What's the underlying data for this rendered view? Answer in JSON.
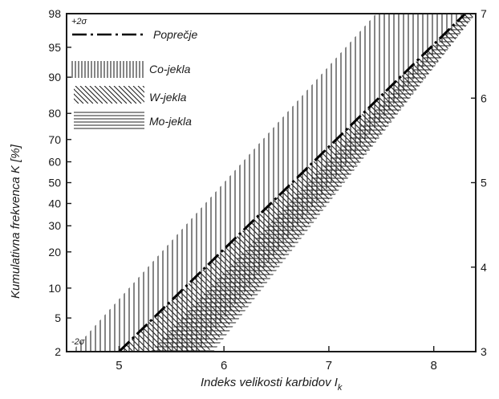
{
  "chart_data": {
    "type": "line",
    "xlabel": "Indeks velikosti karbidov I",
    "xlabel_sub": "k",
    "ylabel": "Kumulativna frekvenca K [%]",
    "xlim": [
      4.5,
      8.4
    ],
    "x_ticks": [
      5,
      6,
      7,
      8
    ],
    "y_left_ticks": [
      2,
      5,
      10,
      20,
      30,
      40,
      50,
      60,
      70,
      80,
      90,
      95,
      98
    ],
    "y_right_ticks": [
      3,
      4,
      5,
      6,
      7
    ],
    "annotations": {
      "upper": "+2σ",
      "lower": "-2σ"
    },
    "legend_position": "top-left",
    "series": [
      {
        "name": "Poprečje",
        "style": "dash-dot",
        "x": [
          5.0,
          8.3
        ],
        "y_right": [
          3.0,
          7.0
        ]
      },
      {
        "name": "Co-jekla",
        "style": "vertical-hatch",
        "lower_x": [
          4.55,
          7.45
        ],
        "upper_x": [
          5.75,
          8.3
        ]
      },
      {
        "name": "W-jekla",
        "style": "diagonal-hatch",
        "lower_x": [
          5.0,
          8.3
        ],
        "upper_x": [
          5.85,
          8.4
        ]
      },
      {
        "name": "Mo-jekla",
        "style": "horizontal-hatch",
        "lower_x": [
          5.3,
          8.3
        ],
        "upper_x": [
          5.9,
          8.4
        ]
      }
    ]
  }
}
